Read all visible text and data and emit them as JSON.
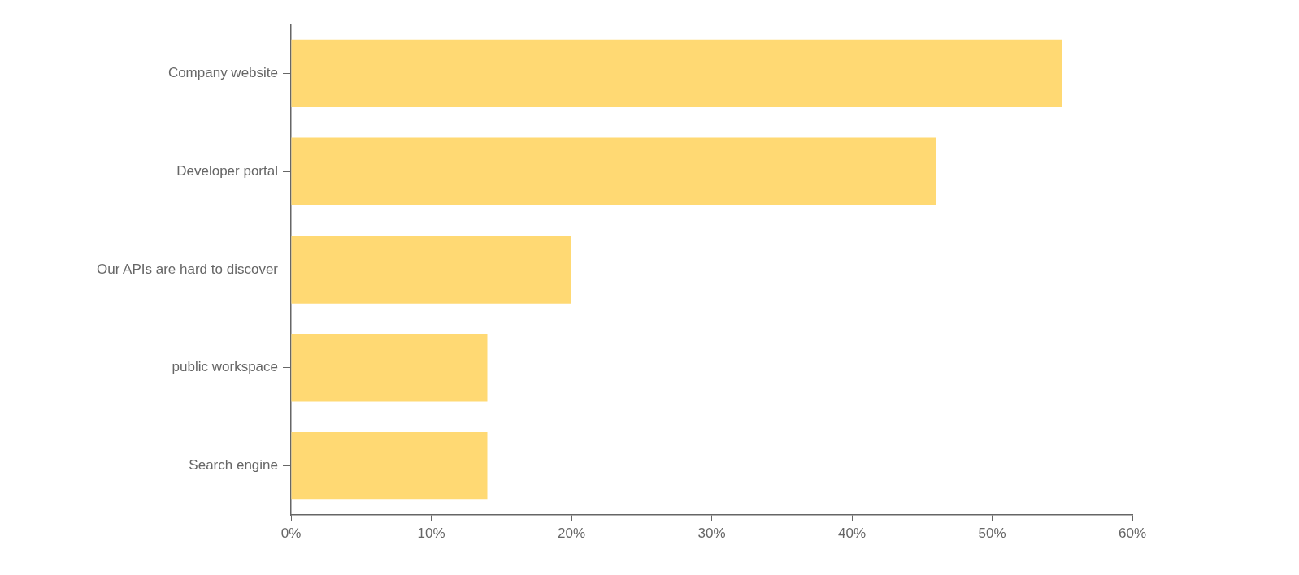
{
  "chart_data": {
    "type": "bar",
    "orientation": "horizontal",
    "categories": [
      "Company website",
      "Developer portal",
      "Our APIs are hard to discover",
      "public workspace",
      "Search engine"
    ],
    "values": [
      55,
      46,
      20,
      14,
      14
    ],
    "color": "#ffd973",
    "xlim": [
      0,
      60
    ],
    "xticks": [
      {
        "value": 0,
        "label": "0%"
      },
      {
        "value": 10,
        "label": "10%"
      },
      {
        "value": 20,
        "label": "20%"
      },
      {
        "value": 30,
        "label": "30%"
      },
      {
        "value": 40,
        "label": "40%"
      },
      {
        "value": 50,
        "label": "50%"
      },
      {
        "value": 60,
        "label": "60%"
      }
    ]
  }
}
